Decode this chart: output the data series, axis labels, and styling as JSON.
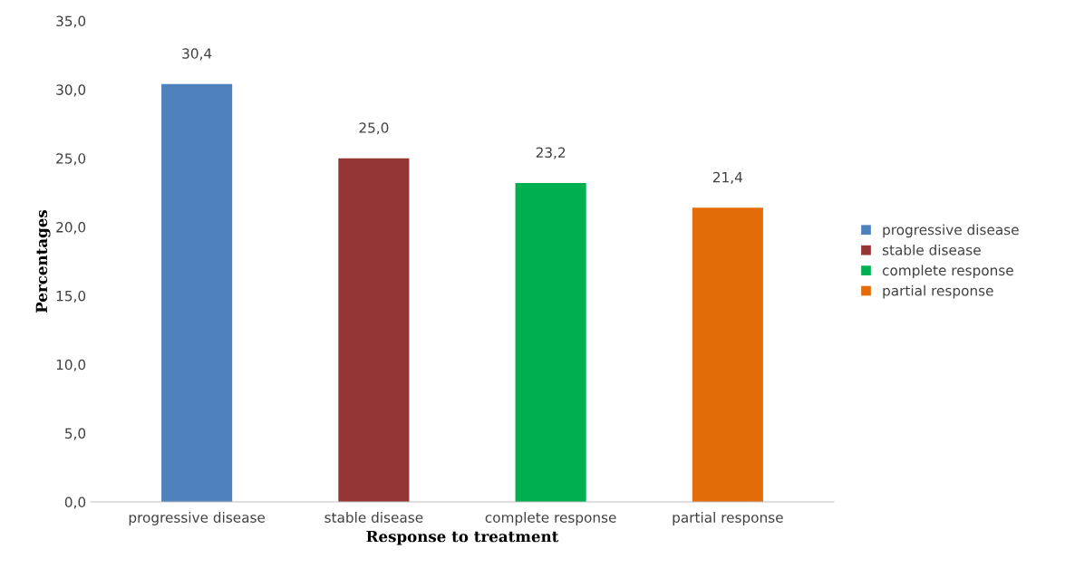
{
  "chart_data": {
    "type": "bar",
    "xlabel": "Response to treatment",
    "ylabel": "Percentages",
    "categories": [
      "progressive disease",
      "stable disease",
      "complete response",
      "partial response"
    ],
    "stacked": true,
    "series": [
      {
        "name": "progressive disease",
        "color": "#4f81bd",
        "values": [
          30.4,
          null,
          null,
          null
        ],
        "value_labels": [
          "30,4",
          null,
          null,
          null
        ]
      },
      {
        "name": "stable disease",
        "color": "#943634",
        "values": [
          null,
          25.0,
          null,
          null
        ],
        "value_labels": [
          null,
          "25,0",
          null,
          null
        ]
      },
      {
        "name": "complete response",
        "color": "#00b050",
        "values": [
          null,
          null,
          23.2,
          null
        ],
        "value_labels": [
          null,
          null,
          "23,2",
          null
        ]
      },
      {
        "name": "partial response",
        "color": "#e36c09",
        "values": [
          null,
          null,
          null,
          21.4
        ],
        "value_labels": [
          null,
          null,
          null,
          "21,4"
        ]
      }
    ],
    "ylim": [
      0,
      35
    ],
    "yticks": [
      {
        "value": 0,
        "label": "0,0"
      },
      {
        "value": 5,
        "label": "5,0"
      },
      {
        "value": 10,
        "label": "10,0"
      },
      {
        "value": 15,
        "label": "15,0"
      },
      {
        "value": 20,
        "label": "20,0"
      },
      {
        "value": 25,
        "label": "25,0"
      },
      {
        "value": 30,
        "label": "30,0"
      },
      {
        "value": 35,
        "label": "35,0"
      }
    ],
    "legend": "right"
  }
}
